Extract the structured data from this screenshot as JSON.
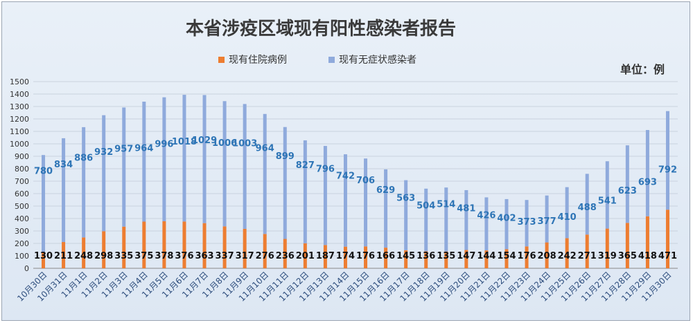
{
  "chart_data": {
    "type": "bar",
    "stacked": true,
    "title": "本省涉疫区域现有阳性感染者报告",
    "unit_label": "单位：例",
    "ylim": [
      0,
      1500
    ],
    "yticks": [
      0,
      100,
      200,
      300,
      400,
      500,
      600,
      700,
      800,
      900,
      1000,
      1100,
      1200,
      1300,
      1400,
      1500
    ],
    "grid": true,
    "legend_position": "top",
    "categories": [
      "10月30日",
      "10月31日",
      "11月1日",
      "11月2日",
      "11月3日",
      "11月4日",
      "11月5日",
      "11月6日",
      "11月7日",
      "11月8日",
      "11月9日",
      "11月10日",
      "11月11日",
      "11月12日",
      "11月13日",
      "11月14日",
      "11月15日",
      "11月16日",
      "11月17日",
      "11月18日",
      "11月19日",
      "11月20日",
      "11月21日",
      "11月22日",
      "11月23日",
      "11月24日",
      "11月25日",
      "11月26日",
      "11月27日",
      "11月28日",
      "11月29日",
      "11月30日"
    ],
    "series": [
      {
        "name": "现有住院病例",
        "color": "#ed7d31",
        "values": [
          130,
          211,
          248,
          298,
          335,
          375,
          378,
          376,
          363,
          337,
          317,
          276,
          236,
          201,
          187,
          174,
          176,
          166,
          145,
          136,
          135,
          147,
          144,
          154,
          176,
          208,
          242,
          271,
          319,
          365,
          418,
          471
        ]
      },
      {
        "name": "现有无症状感染者",
        "color": "#8faadc",
        "label_color": "#2e75b6",
        "values": [
          780,
          834,
          886,
          932,
          957,
          964,
          996,
          1018,
          1029,
          1006,
          1003,
          964,
          899,
          827,
          796,
          742,
          706,
          629,
          563,
          504,
          514,
          481,
          426,
          402,
          373,
          377,
          410,
          488,
          541,
          623,
          693,
          792
        ]
      }
    ]
  }
}
